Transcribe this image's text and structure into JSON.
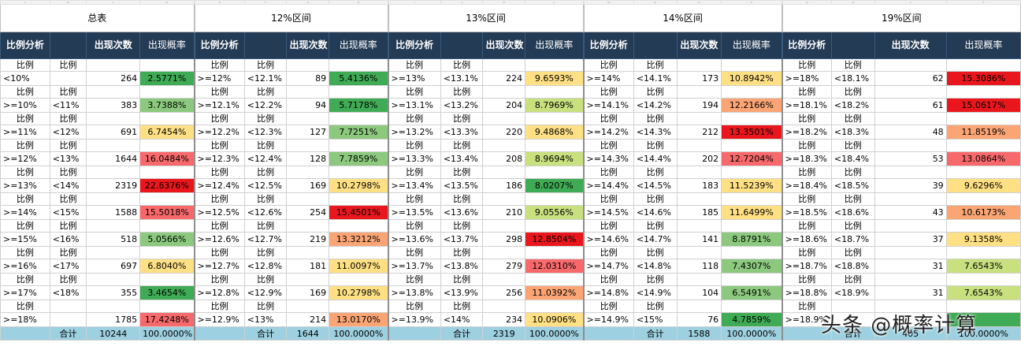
{
  "colLetters": [
    "A",
    "B",
    "C",
    "D",
    "E",
    "F",
    "G",
    "H",
    "I",
    "J",
    "K",
    "L",
    "M",
    "N",
    "O",
    "P",
    "Q",
    "R",
    "S",
    "T"
  ],
  "groups": [
    "总表",
    "12%区间",
    "13%区间",
    "14%区间",
    "19%区间"
  ],
  "headers": [
    "比例分析",
    "",
    "出现次数",
    "出现概率"
  ],
  "subLabel": "比例",
  "totalLabel": "合计",
  "colors": {
    "red": "#f8696b",
    "darkred": "#e9171d",
    "orange": "#fba575",
    "yellow": "#ffe084",
    "lightgreen": "#c8e07e",
    "green": "#8cc97e",
    "darkgreen": "#3fab55"
  },
  "sections": [
    {
      "rows": [
        [
          "<10%",
          "",
          "264",
          "2.5771%",
          "darkgreen"
        ],
        [
          ">=10%",
          "<11%",
          "383",
          "3.7388%",
          "green"
        ],
        [
          ">=11%",
          "<12%",
          "691",
          "6.7454%",
          "yellow"
        ],
        [
          ">=12%",
          "<13%",
          "1644",
          "16.0484%",
          "red"
        ],
        [
          ">=13%",
          "<14%",
          "2319",
          "22.6376%",
          "darkred"
        ],
        [
          ">=14%",
          "<15%",
          "1588",
          "15.5018%",
          "red"
        ],
        [
          ">=15%",
          "<16%",
          "518",
          "5.0566%",
          "green"
        ],
        [
          ">=16%",
          "<17%",
          "697",
          "6.8040%",
          "yellow"
        ],
        [
          ">=17%",
          "<18%",
          "355",
          "3.4654%",
          "darkgreen"
        ],
        [
          ">=18%",
          "",
          "1785",
          "17.4248%",
          "red"
        ]
      ],
      "total": [
        "10244",
        "100.0000%"
      ]
    },
    {
      "rows": [
        [
          ">=12%",
          "<12.1%",
          "89",
          "5.4136%",
          "darkgreen"
        ],
        [
          ">=12.1%",
          "<12.2%",
          "94",
          "5.7178%",
          "darkgreen"
        ],
        [
          ">=12.2%",
          "<12.3%",
          "127",
          "7.7251%",
          "green"
        ],
        [
          ">=12.3%",
          "<12.4%",
          "128",
          "7.7859%",
          "green"
        ],
        [
          ">=12.4%",
          "<12.5%",
          "169",
          "10.2798%",
          "yellow"
        ],
        [
          ">=12.5%",
          "<12.6%",
          "254",
          "15.4501%",
          "darkred"
        ],
        [
          ">=12.6%",
          "<12.7%",
          "219",
          "13.3212%",
          "orange"
        ],
        [
          ">=12.7%",
          "<12.8%",
          "181",
          "11.0097%",
          "yellow"
        ],
        [
          ">=12.8%",
          "<12.9%",
          "169",
          "10.2798%",
          "yellow"
        ],
        [
          ">=12.9%",
          "<13%",
          "214",
          "13.0170%",
          "orange"
        ]
      ],
      "total": [
        "1644",
        "100.0000%"
      ]
    },
    {
      "rows": [
        [
          ">=13%",
          "<13.1%",
          "224",
          "9.6593%",
          "yellow"
        ],
        [
          ">=13.1%",
          "<13.2%",
          "204",
          "8.7969%",
          "lightgreen"
        ],
        [
          ">=13.2%",
          "<13.3%",
          "220",
          "9.4868%",
          "yellow"
        ],
        [
          ">=13.3%",
          "<13.4%",
          "208",
          "8.9694%",
          "lightgreen"
        ],
        [
          ">=13.4%",
          "<13.5%",
          "186",
          "8.0207%",
          "darkgreen"
        ],
        [
          ">=13.5%",
          "<13.6%",
          "210",
          "9.0556%",
          "lightgreen"
        ],
        [
          ">=13.6%",
          "<13.7%",
          "298",
          "12.8504%",
          "darkred"
        ],
        [
          ">=13.7%",
          "<13.8%",
          "279",
          "12.0310%",
          "red"
        ],
        [
          ">=13.8%",
          "<13.9%",
          "256",
          "11.0392%",
          "orange"
        ],
        [
          ">=13.9%",
          "<14%",
          "234",
          "10.0906%",
          "yellow"
        ]
      ],
      "total": [
        "2319",
        "100.0000%"
      ]
    },
    {
      "rows": [
        [
          ">=14%",
          "<14.1%",
          "173",
          "10.8942%",
          "yellow"
        ],
        [
          ">=14.1%",
          "<14.2%",
          "194",
          "12.2166%",
          "orange"
        ],
        [
          ">=14.2%",
          "<14.3%",
          "212",
          "13.3501%",
          "darkred"
        ],
        [
          ">=14.3%",
          "<14.4%",
          "202",
          "12.7204%",
          "red"
        ],
        [
          ">=14.4%",
          "<14.5%",
          "183",
          "11.5239%",
          "yellow"
        ],
        [
          ">=14.5%",
          "<14.6%",
          "185",
          "11.6499%",
          "yellow"
        ],
        [
          ">=14.6%",
          "<14.7%",
          "141",
          "8.8791%",
          "green"
        ],
        [
          ">=14.7%",
          "<14.8%",
          "118",
          "7.4307%",
          "green"
        ],
        [
          ">=14.8%",
          "<14.9%",
          "104",
          "6.5491%",
          "green"
        ],
        [
          ">=14.9%",
          "<15%",
          "76",
          "4.7859%",
          "darkgreen"
        ]
      ],
      "total": [
        "1588",
        "100.0000%"
      ]
    },
    {
      "rows": [
        [
          ">=18%",
          "<18.1%",
          "62",
          "15.3086%",
          "darkred"
        ],
        [
          ">=18.1%",
          "<18.2%",
          "61",
          "15.0617%",
          "darkred"
        ],
        [
          ">=18.2%",
          "<18.3%",
          "48",
          "11.8519%",
          "orange"
        ],
        [
          ">=18.3%",
          "<18.4%",
          "53",
          "13.0864%",
          "red"
        ],
        [
          ">=18.4%",
          "<18.5%",
          "39",
          "9.6296%",
          "yellow"
        ],
        [
          ">=18.5%",
          "<18.6%",
          "43",
          "10.6173%",
          "orange"
        ],
        [
          ">=18.6%",
          "<18.7%",
          "37",
          "9.1358%",
          "yellow"
        ],
        [
          ">=18.7%",
          "<18.8%",
          "31",
          "7.6543%",
          "lightgreen"
        ],
        [
          ">=18.8%",
          "<18.9%",
          "31",
          "7.6543%",
          "lightgreen"
        ],
        [
          ">=18.9%",
          "",
          "",
          "",
          "darkgreen"
        ]
      ],
      "total": [
        "405",
        "100.0000%"
      ]
    }
  ],
  "watermark": "头条 @概率计算"
}
